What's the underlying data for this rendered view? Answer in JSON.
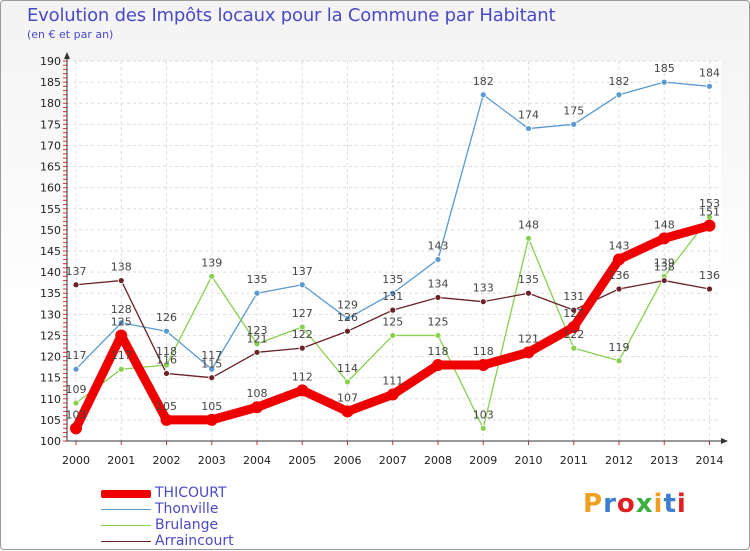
{
  "header": {
    "title": "Evolution des Impôts locaux pour la Commune par Habitant",
    "subtitle": "(en € et par an)"
  },
  "brand": {
    "name": "Proxiti",
    "colors": [
      "#f0a020",
      "#3a7fd0",
      "#e02020",
      "#3ab040"
    ]
  },
  "chart_data": {
    "type": "line",
    "title": "Evolution des Impôts locaux pour la Commune par Habitant",
    "subtitle": "(en € et par an)",
    "xlabel": "",
    "ylabel": "",
    "x": [
      "2000",
      "2001",
      "2002",
      "2003",
      "2004",
      "2005",
      "2006",
      "2007",
      "2008",
      "2009",
      "2010",
      "2011",
      "2012",
      "2013",
      "2014"
    ],
    "ylim": [
      100,
      190
    ],
    "yticks": [
      100,
      105,
      110,
      115,
      120,
      125,
      130,
      135,
      140,
      145,
      150,
      155,
      160,
      165,
      170,
      175,
      180,
      185,
      190
    ],
    "grid": true,
    "legend_position": "bottom-left",
    "series": [
      {
        "name": "THICOURT",
        "color": "#ee0000",
        "values": [
          103,
          125,
          105,
          105,
          108,
          112,
          107,
          111,
          118,
          118,
          121,
          127,
          143,
          148,
          151
        ],
        "labels": [
          "103",
          "125",
          "105",
          "105",
          "108",
          "112",
          "107",
          "111",
          "118",
          "118",
          "121",
          "127",
          "143",
          "148",
          "151"
        ]
      },
      {
        "name": "Thonville",
        "color": "#5a9ad0",
        "values": [
          117,
          128,
          126,
          117,
          135,
          137,
          129,
          135,
          143,
          182,
          174,
          175,
          182,
          185,
          184
        ],
        "labels": [
          "117",
          "128",
          "126",
          "117",
          "135",
          "137",
          "129",
          "135",
          "143",
          "182",
          "174",
          "175",
          "182",
          "185",
          "184"
        ]
      },
      {
        "name": "Brulange",
        "color": "#88d050",
        "values": [
          109,
          117,
          118,
          139,
          123,
          127,
          114,
          125,
          125,
          103,
          148,
          122,
          119,
          139,
          153
        ],
        "labels": [
          "109",
          "117",
          "118",
          "139",
          "123",
          "127",
          "114",
          "125",
          "125",
          "103",
          "148",
          "122",
          "119",
          "139",
          "153"
        ]
      },
      {
        "name": "Arraincourt",
        "color": "#6b2228",
        "values": [
          137,
          138,
          116,
          115,
          121,
          122,
          126,
          131,
          134,
          133,
          135,
          131,
          136,
          138,
          136
        ],
        "labels": [
          "137",
          "138",
          "116",
          "115",
          "121",
          "122",
          "126",
          "131",
          "134",
          "133",
          "135",
          "131",
          "136",
          "138",
          "136"
        ]
      }
    ]
  }
}
